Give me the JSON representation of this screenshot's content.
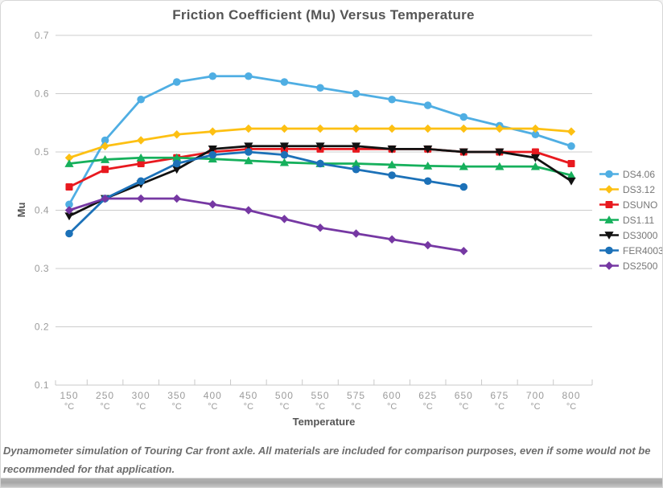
{
  "chart_data": {
    "type": "line",
    "title": "Friction Coefficient (Mu) Versus Temperature",
    "xlabel": "Temperature",
    "ylabel": "Mu",
    "x_unit": "°C",
    "categories": [
      "150",
      "250",
      "300",
      "350",
      "400",
      "450",
      "500",
      "550",
      "575",
      "600",
      "625",
      "650",
      "675",
      "700",
      "800"
    ],
    "y_ticks": [
      "0.7",
      "0.6",
      "0.5",
      "0.4",
      "0.3",
      "0.2",
      "0.1"
    ],
    "ylim": [
      0.1,
      0.7
    ],
    "grid": "horizontal-only",
    "legend_position": "right",
    "series": [
      {
        "name": "DS4.06",
        "color": "#4FAEE3",
        "marker": "circle",
        "values": [
          0.41,
          0.52,
          0.59,
          0.62,
          0.63,
          0.63,
          0.62,
          0.61,
          0.6,
          0.59,
          0.58,
          0.56,
          0.545,
          0.53,
          0.51
        ]
      },
      {
        "name": "DS3.12",
        "color": "#FDC013",
        "marker": "diamond",
        "values": [
          0.49,
          0.51,
          0.52,
          0.53,
          0.535,
          0.54,
          0.54,
          0.54,
          0.54,
          0.54,
          0.54,
          0.54,
          0.54,
          0.54,
          0.535
        ]
      },
      {
        "name": "DSUNO",
        "color": "#E8191F",
        "marker": "square",
        "values": [
          0.44,
          0.47,
          0.48,
          0.49,
          0.5,
          0.505,
          0.505,
          0.505,
          0.505,
          0.505,
          0.505,
          0.5,
          0.5,
          0.5,
          0.48
        ]
      },
      {
        "name": "DS1.11",
        "color": "#16B05C",
        "marker": "triangle-up",
        "values": [
          0.48,
          0.487,
          0.49,
          0.49,
          0.488,
          0.485,
          0.482,
          0.48,
          0.48,
          0.478,
          0.476,
          0.475,
          0.475,
          0.475,
          0.46
        ]
      },
      {
        "name": "DS3000",
        "color": "#111111",
        "marker": "triangle-down",
        "values": [
          0.39,
          0.42,
          0.445,
          0.47,
          0.505,
          0.51,
          0.51,
          0.51,
          0.51,
          0.505,
          0.505,
          0.5,
          0.5,
          0.49,
          0.45
        ]
      },
      {
        "name": "FER4003",
        "color": "#1C71B8",
        "marker": "circle",
        "values": [
          0.36,
          0.42,
          0.45,
          0.48,
          0.495,
          0.5,
          0.495,
          0.48,
          0.47,
          0.46,
          0.45,
          0.44
        ]
      },
      {
        "name": "DS2500",
        "color": "#7638A3",
        "marker": "diamond",
        "values": [
          0.4,
          0.42,
          0.42,
          0.42,
          0.41,
          0.4,
          0.385,
          0.37,
          0.36,
          0.35,
          0.34,
          0.33
        ]
      }
    ]
  },
  "footer": {
    "lines": [
      "Dynamometer simulation of Touring Car front axle. All materials are included for comparison purposes, even if some would not be",
      "recommended for that application."
    ]
  },
  "colors": {
    "grid": "#cccccc",
    "axis_line": "#c9c9c9",
    "tick_text": "#9b9b9b",
    "axis_title_text": "#555555",
    "title_text": "#555555",
    "legend_text": "#777777",
    "footer_text": "#6d6d6d",
    "card_border": "#d6d6d6"
  }
}
